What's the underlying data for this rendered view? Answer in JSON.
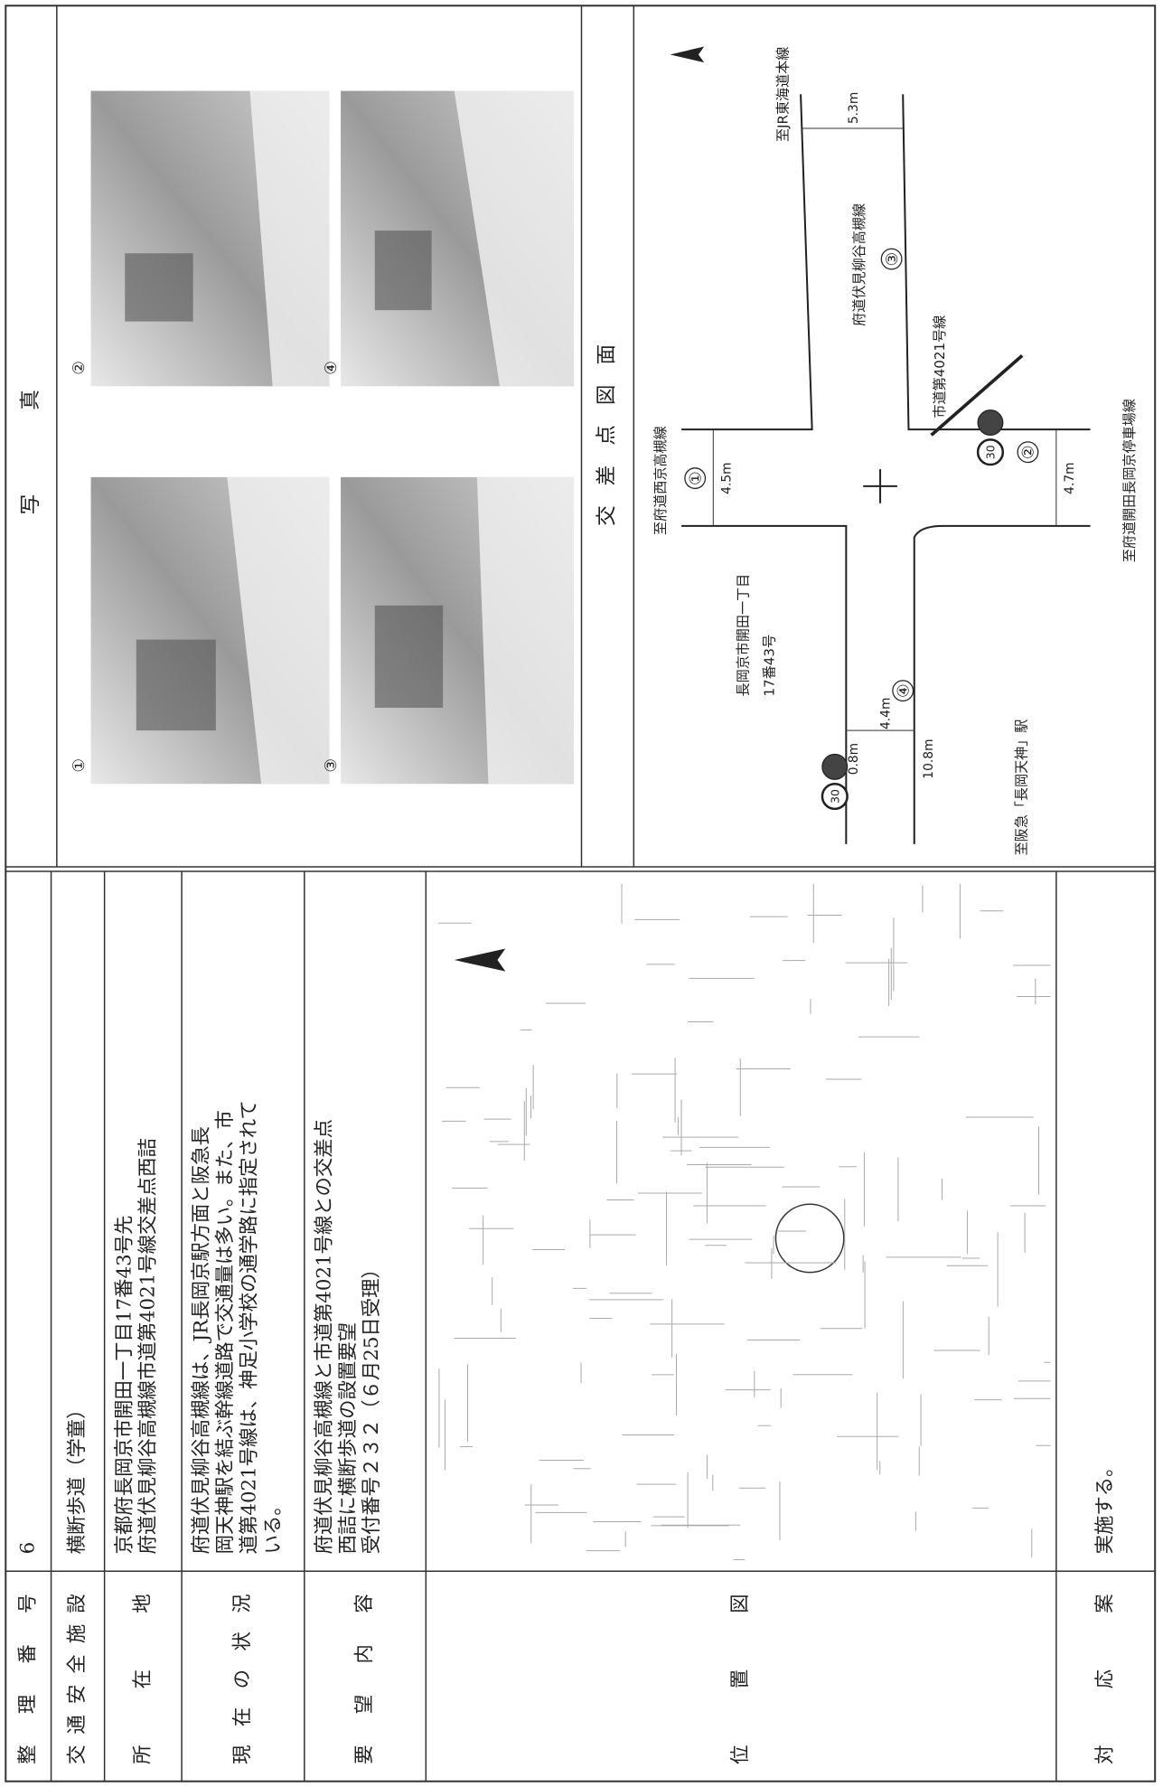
{
  "form": {
    "rows": [
      {
        "label": "整理番号",
        "value": [
          "6"
        ]
      },
      {
        "label": "交通安全施設",
        "value": [
          "横断歩道（学童）"
        ]
      },
      {
        "label": "所在地",
        "value": [
          "京都府長岡京市開田一丁目17番43号先",
          "府道伏見柳谷高槻線市道第4021号線交差点西詰"
        ]
      },
      {
        "label": "現在の状況",
        "value": [
          "府道伏見柳谷高槻線は、JR長岡京駅方面と阪急長",
          "岡天神駅を結ぶ幹線道路で交通量は多い。また、市",
          "道第4021号線は、神足小学校の通学路に指定されて",
          "いる。"
        ]
      },
      {
        "label": "要望内容",
        "value": [
          "府道伏見柳谷高槻線と市道第4021号線との交差点",
          "西詰に横断歩道の設置要望",
          "受付番号２３２（６月25日受理）"
        ]
      },
      {
        "label": "位置図"
      },
      {
        "label": "対応案",
        "value": [
          "実施する。"
        ]
      }
    ]
  },
  "photos": {
    "header": "写真",
    "labels": [
      "①",
      "②",
      "③",
      "④"
    ]
  },
  "diagram": {
    "header": "交差点図面",
    "labels": [
      "至府道西京高槻線",
      "至JR東海道本線",
      "府道伏見柳谷高槻線",
      "市道第4021号線",
      "至府道開田長岡京停車場線",
      "至阪急「長岡天神」駅",
      "長岡京市開田一丁目",
      "17番43号"
    ],
    "measurements": [
      "4.5m",
      "5.3m",
      "0.8m",
      "4.4m",
      "10.8m",
      "4.7m"
    ],
    "markers": [
      "①",
      "②",
      "③",
      "④"
    ],
    "signs": [
      "30",
      "30"
    ]
  }
}
